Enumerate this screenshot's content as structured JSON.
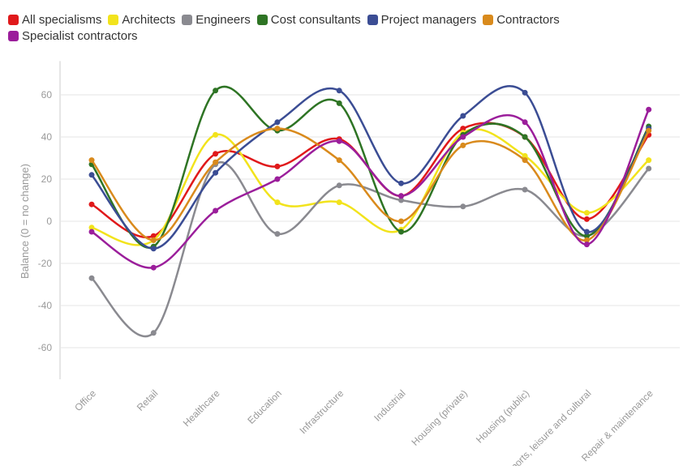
{
  "chart_data": {
    "type": "line",
    "ylabel": "Balance (0 = no change)",
    "xlabel": "",
    "ylim": [
      -75,
      76
    ],
    "yticks": [
      60,
      40,
      20,
      0,
      -20,
      -40,
      -60
    ],
    "grid": true,
    "legend_position": "top-left",
    "categories": [
      "Office",
      "Retail",
      "Healthcare",
      "Education",
      "Infrastructure",
      "Industrial",
      "Housing (private)",
      "Housing (public)",
      "Sports, leisure and cultural",
      "Repair & maintenance"
    ],
    "series": [
      {
        "name": "All specialisms",
        "color": "#e0191b",
        "values": [
          8,
          -7,
          32,
          26,
          39,
          12,
          44,
          40,
          1,
          41
        ]
      },
      {
        "name": "Architects",
        "color": "#f2e31c",
        "values": [
          -3,
          -9,
          41,
          9,
          9,
          -4,
          42,
          31,
          4,
          29
        ]
      },
      {
        "name": "Engineers",
        "color": "#8a8a90",
        "values": [
          -27,
          -53,
          27,
          -6,
          17,
          10,
          7,
          15,
          -7,
          25
        ]
      },
      {
        "name": "Cost consultants",
        "color": "#2e7424",
        "values": [
          27,
          -12,
          62,
          43,
          56,
          -5,
          41,
          40,
          -7,
          45
        ]
      },
      {
        "name": "Project managers",
        "color": "#3b4d94",
        "values": [
          22,
          -13,
          23,
          47,
          62,
          18,
          50,
          61,
          -5,
          44
        ]
      },
      {
        "name": "Contractors",
        "color": "#d98a1c",
        "values": [
          29,
          -9,
          28,
          44,
          29,
          0,
          36,
          29,
          -9,
          43
        ]
      },
      {
        "name": "Specialist contractors",
        "color": "#9b1e9b",
        "values": [
          -5,
          -22,
          5,
          20,
          38,
          12,
          40,
          47,
          -11,
          53
        ]
      }
    ]
  }
}
